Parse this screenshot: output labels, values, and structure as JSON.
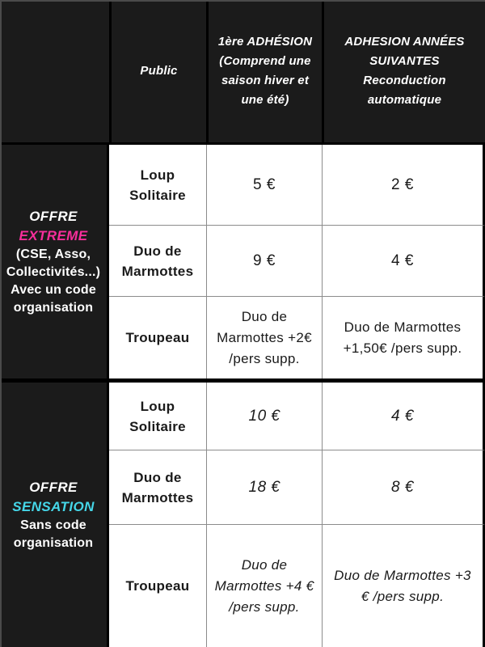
{
  "colors": {
    "accent_pink": "#f72e9b",
    "accent_cyan": "#45d6e8",
    "dark_bg": "#1b1b1b",
    "grid_line": "#8c8c8c"
  },
  "header": {
    "public_label": "Public",
    "first_membership_lines": [
      "1ère ADHÉSION",
      "(Comprend une",
      "saison hiver et",
      "une été)"
    ],
    "next_years_lines": [
      "ADHESION ANNÉES",
      "SUIVANTES",
      "Reconduction",
      "automatique"
    ]
  },
  "offers": [
    {
      "title_word": "OFFRE",
      "name": "EXTREME",
      "desc_lines": [
        "(CSE, Asso,",
        "Collectivités...)",
        "Avec un code",
        "organisation"
      ],
      "rows": [
        {
          "public": "Loup Solitaire",
          "first_membership": "5 €",
          "next_years": "2 €"
        },
        {
          "public": "Duo de Marmottes",
          "first_membership": "9 €",
          "next_years": "4 €"
        },
        {
          "public": "Troupeau",
          "first_membership": "Duo de Marmottes +2€ /pers supp.",
          "next_years": "Duo de Marmottes +1,50€ /pers supp."
        }
      ]
    },
    {
      "title_word": "OFFRE",
      "name": "SENSATION",
      "desc_lines": [
        "Sans code",
        "organisation"
      ],
      "rows": [
        {
          "public": "Loup Solitaire",
          "first_membership": "10 €",
          "next_years": "4 €"
        },
        {
          "public": "Duo de Marmottes",
          "first_membership": "18 €",
          "next_years": "8 €"
        },
        {
          "public": "Troupeau",
          "first_membership": "Duo de Marmottes +4 € /pers supp.",
          "next_years": "Duo de Marmottes +3 € /pers supp."
        }
      ]
    }
  ]
}
